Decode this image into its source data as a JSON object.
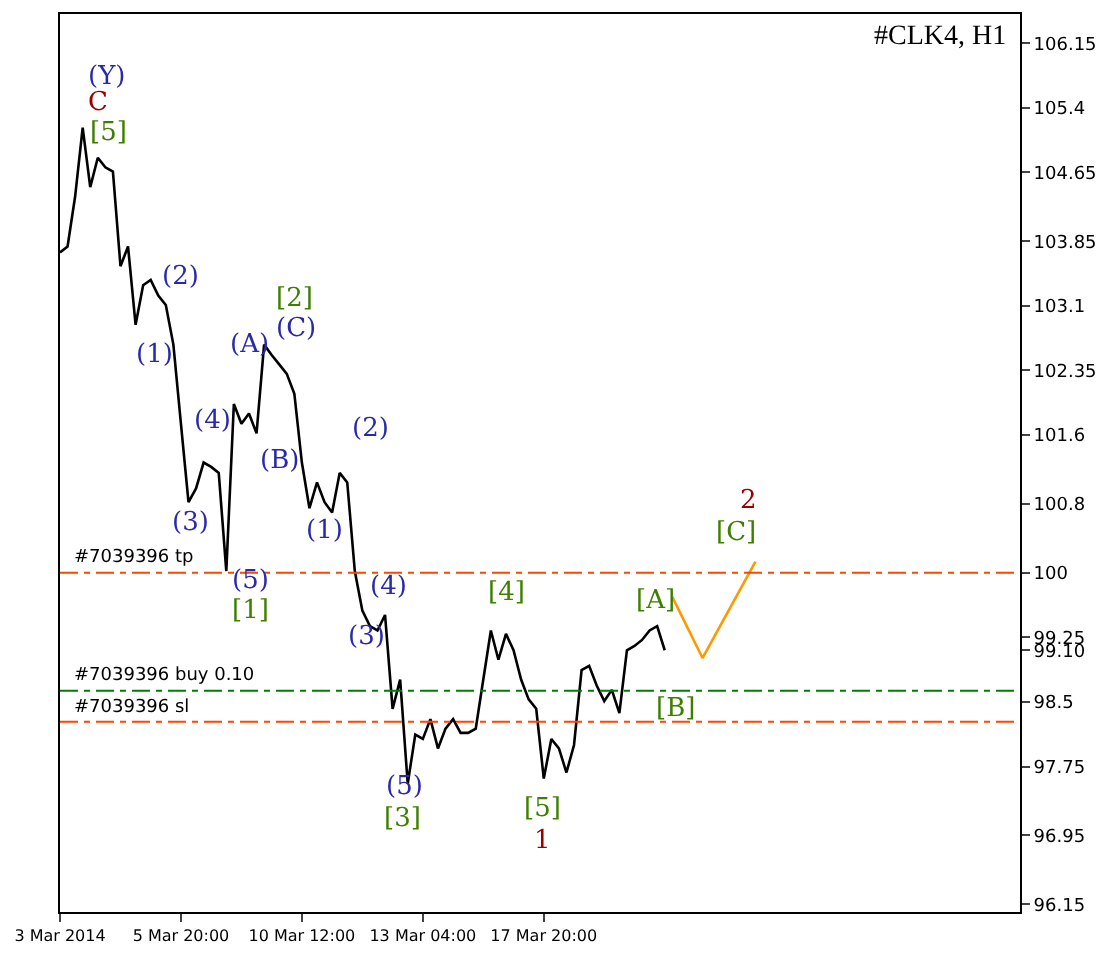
{
  "chart_data": {
    "type": "line",
    "title": "#CLK4, H1",
    "categories": [
      "3 Mar 2014",
      null,
      null,
      null,
      null,
      null,
      null,
      null,
      null,
      null,
      null,
      null,
      null,
      null,
      null,
      null,
      "5 Mar 20:00",
      null,
      null,
      null,
      null,
      null,
      null,
      null,
      null,
      null,
      null,
      null,
      null,
      null,
      null,
      null,
      "10 Mar 12:00",
      null,
      null,
      null,
      null,
      null,
      null,
      null,
      null,
      null,
      null,
      null,
      null,
      null,
      null,
      null,
      "13 Mar 04:00",
      null,
      null,
      null,
      null,
      null,
      null,
      null,
      null,
      null,
      null,
      null,
      null,
      null,
      null,
      null,
      "17 Mar 20:00",
      null,
      null,
      null,
      null,
      null,
      null,
      null,
      null,
      null,
      null,
      null,
      null,
      null,
      null,
      null,
      null,
      null,
      null,
      null,
      null,
      null,
      null,
      null,
      null,
      null,
      null,
      null,
      null,
      null,
      null,
      null,
      null,
      null,
      null,
      null,
      null,
      null,
      null,
      null,
      null,
      null,
      null,
      null,
      null,
      null,
      null,
      null,
      null,
      null,
      null,
      null,
      null,
      null,
      null,
      null,
      null,
      null,
      null,
      null,
      null,
      null,
      null,
      null
    ],
    "series": [
      {
        "color": "#000000",
        "values": [
          103.72,
          103.79,
          104.37,
          105.17,
          104.48,
          104.82,
          104.71,
          104.66,
          103.56,
          103.79,
          102.88,
          103.34,
          103.4,
          103.22,
          103.11,
          102.65,
          101.73,
          100.82,
          100.98,
          101.28,
          101.23,
          101.16,
          100.02,
          101.96,
          101.73,
          101.85,
          101.62,
          102.65,
          102.53,
          102.42,
          102.31,
          102.08,
          101.28,
          100.75,
          101.05,
          100.82,
          100.7,
          101.16,
          101.05,
          100.02,
          99.56,
          99.38,
          99.33,
          99.51,
          98.42,
          98.76,
          97.55,
          98.12,
          98.07,
          98.3,
          97.96,
          98.19,
          98.3,
          98.14,
          98.14,
          98.19,
          98.76,
          99.33,
          98.99,
          99.29,
          99.1,
          98.76,
          98.53,
          98.42,
          97.61,
          98.07,
          97.96,
          97.68,
          98.0,
          98.87,
          98.92,
          98.69,
          98.51,
          98.64,
          98.37,
          99.1,
          99.15,
          99.22,
          99.33,
          99.38,
          99.1,
          null,
          null,
          null,
          null,
          null,
          null,
          null,
          null,
          null,
          null,
          null,
          null,
          null,
          null,
          null,
          null,
          null,
          null,
          null,
          null,
          null,
          null,
          null,
          null,
          null,
          null,
          null,
          null,
          null,
          null,
          null,
          null,
          null,
          null,
          null,
          null,
          null,
          null,
          null,
          null,
          null,
          null,
          null,
          null,
          null,
          null,
          null
        ]
      },
      {
        "color": "#ff9900",
        "values": [
          null,
          null,
          null,
          null,
          null,
          null,
          null,
          null,
          null,
          null,
          null,
          null,
          null,
          null,
          null,
          null,
          null,
          null,
          null,
          null,
          null,
          null,
          null,
          null,
          null,
          null,
          null,
          null,
          null,
          null,
          null,
          null,
          null,
          null,
          null,
          null,
          null,
          null,
          null,
          null,
          null,
          null,
          null,
          null,
          null,
          null,
          null,
          null,
          null,
          null,
          null,
          null,
          null,
          null,
          null,
          null,
          null,
          null,
          null,
          null,
          null,
          null,
          null,
          null,
          null,
          null,
          null,
          null,
          null,
          null,
          null,
          null,
          null,
          null,
          null,
          null,
          null,
          null,
          null,
          null,
          null,
          99.72,
          null,
          null,
          null,
          99.01,
          null,
          null,
          null,
          null,
          null,
          null,
          100.13,
          null,
          null,
          null,
          null,
          null,
          null,
          null,
          null,
          null,
          null,
          null,
          null,
          null,
          null,
          null,
          null,
          null,
          null,
          null,
          null,
          null,
          null,
          null,
          null,
          null,
          null,
          null,
          null,
          null,
          null,
          null,
          null,
          null,
          null,
          null
        ]
      }
    ],
    "ylim": [
      96.06,
      106.49
    ],
    "yticks": [
      96.15,
      96.95,
      97.75,
      98.5,
      {
        "value": 99.1,
        "label": "99.10"
      },
      99.25,
      100,
      100.8,
      101.6,
      102.35,
      103.1,
      103.85,
      104.65,
      105.4,
      106.15
    ],
    "ref_lines": [
      {
        "axis": "y",
        "value": 100.0,
        "label": "#7039396 tp",
        "color": "#ff4500",
        "line_style": "dashed"
      },
      {
        "axis": "y",
        "value": 98.63,
        "label": "#7039396 buy 0.10",
        "color": "#008000",
        "line_style": "dashed"
      },
      {
        "axis": "y",
        "value": 98.27,
        "label": "#7039396 sl",
        "color": "#ff4500",
        "line_style": "dashed"
      }
    ],
    "annotations": [
      "(Y)",
      "C",
      "[5]",
      "(2)",
      "(1)",
      "[2]",
      "(C)",
      "(A)",
      "(4)",
      "(B)",
      "(3)",
      "(5)",
      "[1]",
      "(2)",
      "(1)",
      "(4)",
      "(3)",
      "(5)",
      "[3]",
      "[4]",
      "[5]",
      "1",
      "[A]",
      "[B]",
      "[C]",
      "2"
    ],
    "grid": false,
    "marker": "none",
    "line_style": "solid"
  }
}
